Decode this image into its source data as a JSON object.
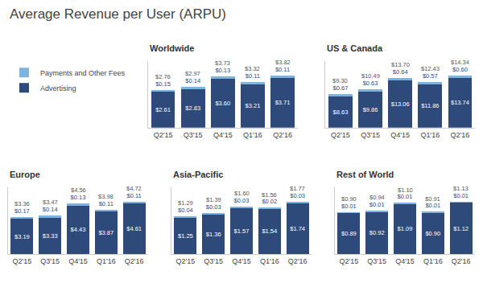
{
  "title": "Average Revenue per User (ARPU)",
  "legend": "upper left",
  "chart_data": [
    {
      "type": "bar",
      "title": "Worldwide",
      "categories": [
        "Q2'15",
        "Q3'15",
        "Q4'15",
        "Q1'16",
        "Q2'16"
      ],
      "stacked": true,
      "data_labels": true,
      "tick_labels": "x",
      "grid": false,
      "ylim": [
        0,
        4.8896
      ],
      "yticks": [],
      "series": [
        {
          "name": "Advertising",
          "color": "#2e4a7a",
          "values": [
            2.61,
            2.83,
            3.6,
            3.21,
            3.71
          ],
          "value_labels": [
            "$2.61",
            "$2.83",
            "$3.60",
            "$3.21",
            "$3.71"
          ]
        },
        {
          "name": "Payments and Other Fees",
          "color": "#7eb3e0",
          "values": [
            0.15,
            0.14,
            0.13,
            0.11,
            0.11
          ],
          "value_labels": [
            "$0.15",
            "$0.14",
            "$0.13",
            "$0.11",
            "$0.11"
          ]
        }
      ],
      "totals": [
        2.76,
        2.97,
        3.73,
        3.32,
        3.82
      ],
      "total_labels": [
        "$2.76",
        "$2.97",
        "$3.73",
        "$3.32",
        "$3.82"
      ]
    },
    {
      "type": "bar",
      "title": "US & Canada",
      "categories": [
        "Q2'15",
        "Q3'15",
        "Q4'15",
        "Q1'16",
        "Q2'16"
      ],
      "stacked": true,
      "data_labels": true,
      "tick_labels": "x",
      "grid": false,
      "ylim": [
        0,
        18.3552
      ],
      "yticks": [],
      "series": [
        {
          "name": "Advertising",
          "color": "#2e4a7a",
          "values": [
            8.63,
            9.86,
            13.06,
            11.86,
            13.74
          ],
          "value_labels": [
            "$8.63",
            "$9.86",
            "$13.06",
            "$11.86",
            "$13.74"
          ]
        },
        {
          "name": "Payments and Other Fees",
          "color": "#7eb3e0",
          "values": [
            0.67,
            0.63,
            0.64,
            0.57,
            0.6
          ],
          "value_labels": [
            "$0.67",
            "$0.63",
            "$0.64",
            "$0.57",
            "$0.60"
          ]
        }
      ],
      "totals": [
        9.3,
        10.49,
        13.7,
        12.43,
        14.34
      ],
      "total_labels": [
        "$9.30",
        "$10.49",
        "$13.70",
        "$12.43",
        "$14.34"
      ]
    },
    {
      "type": "bar",
      "title": "Europe",
      "categories": [
        "Q2'15",
        "Q3'15",
        "Q4'15",
        "Q1'16",
        "Q2'16"
      ],
      "stacked": true,
      "data_labels": true,
      "tick_labels": "x",
      "grid": false,
      "ylim": [
        0,
        6.0416
      ],
      "yticks": [],
      "series": [
        {
          "name": "Advertising",
          "color": "#2e4a7a",
          "values": [
            3.19,
            3.33,
            4.43,
            3.87,
            4.61
          ],
          "value_labels": [
            "$3.19",
            "$3.33",
            "$4.43",
            "$3.87",
            "$4.61"
          ]
        },
        {
          "name": "Payments and Other Fees",
          "color": "#7eb3e0",
          "values": [
            0.17,
            0.14,
            0.13,
            0.11,
            0.11
          ],
          "value_labels": [
            "$0.17",
            "$0.14",
            "$0.13",
            "$0.11",
            "$0.11"
          ]
        }
      ],
      "totals": [
        3.36,
        3.47,
        4.56,
        3.98,
        4.72
      ],
      "total_labels": [
        "$3.36",
        "$3.47",
        "$4.56",
        "$3.98",
        "$4.72"
      ]
    },
    {
      "type": "bar",
      "title": "Asia-Pacific",
      "categories": [
        "Q2'15",
        "Q3'15",
        "Q4'15",
        "Q1'16",
        "Q2'16"
      ],
      "stacked": true,
      "data_labels": true,
      "tick_labels": "x",
      "grid": false,
      "ylim": [
        0,
        2.2656
      ],
      "yticks": [],
      "series": [
        {
          "name": "Advertising",
          "color": "#2e4a7a",
          "values": [
            1.25,
            1.36,
            1.57,
            1.54,
            1.74
          ],
          "value_labels": [
            "$1.25",
            "$1.36",
            "$1.57",
            "$1.54",
            "$1.74"
          ]
        },
        {
          "name": "Payments and Other Fees",
          "color": "#7eb3e0",
          "values": [
            0.04,
            0.03,
            0.03,
            0.02,
            0.03
          ],
          "value_labels": [
            "$0.04",
            "$0.03",
            "$0.03",
            "$0.02",
            "$0.03"
          ]
        }
      ],
      "totals": [
        1.29,
        1.39,
        1.6,
        1.56,
        1.77
      ],
      "total_labels": [
        "$1.29",
        "$1.39",
        "$1.60",
        "$1.56",
        "$1.77"
      ]
    },
    {
      "type": "bar",
      "title": "Rest of World",
      "categories": [
        "Q2'15",
        "Q3'15",
        "Q4'15",
        "Q1'16",
        "Q2'16"
      ],
      "stacked": true,
      "data_labels": true,
      "tick_labels": "x",
      "grid": false,
      "ylim": [
        0,
        1.4464
      ],
      "yticks": [],
      "series": [
        {
          "name": "Advertising",
          "color": "#2e4a7a",
          "values": [
            0.89,
            0.92,
            1.09,
            0.9,
            1.12
          ],
          "value_labels": [
            "$0.89",
            "$0.92",
            "$1.09",
            "$0.90",
            "$1.12"
          ]
        },
        {
          "name": "Payments and Other Fees",
          "color": "#7eb3e0",
          "values": [
            0.01,
            0.01,
            0.01,
            0.01,
            0.01
          ],
          "value_labels": [
            "$0.01",
            "$0.01",
            "$0.01",
            "$0.01",
            "$0.01"
          ]
        }
      ],
      "totals": [
        0.9,
        0.94,
        1.1,
        0.91,
        1.13
      ],
      "total_labels": [
        "$0.90",
        "$0.94",
        "$1.10",
        "$0.91",
        "$1.13"
      ]
    }
  ]
}
